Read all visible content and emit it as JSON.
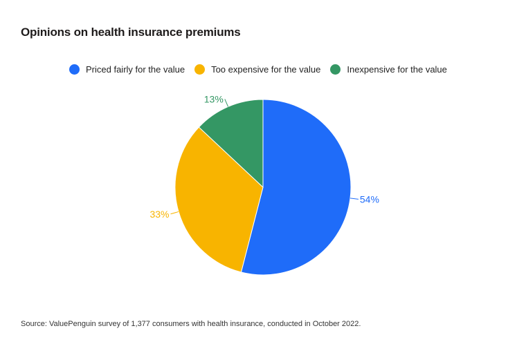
{
  "title": "Opinions on health insurance premiums",
  "source": "Source: ValuePenguin survey of 1,377 consumers with health insurance, conducted in October 2022.",
  "chart_data": {
    "type": "pie",
    "title": "Opinions on health insurance premiums",
    "legend_position": "top",
    "unit": "%",
    "slices": [
      {
        "label": "Priced fairly for the value",
        "value": 54,
        "display": "54%",
        "color": "#1f6cf9"
      },
      {
        "label": "Too expensive for the value",
        "value": 33,
        "display": "33%",
        "color": "#f8b400"
      },
      {
        "label": "Inexpensive for the value",
        "value": 13,
        "display": "13%",
        "color": "#349764"
      }
    ]
  }
}
